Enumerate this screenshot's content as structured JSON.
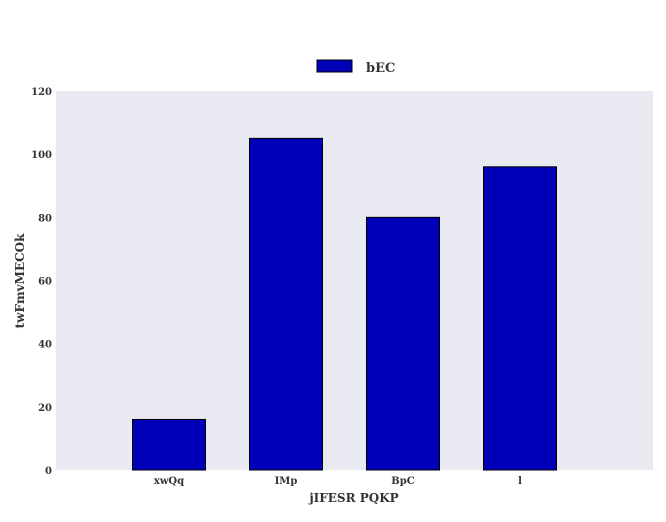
{
  "chart_data": {
    "type": "bar",
    "categories": [
      "xwQq",
      "IMp",
      "BpC",
      "l"
    ],
    "series": [
      {
        "name": "bEC",
        "values": [
          16,
          105,
          80,
          96
        ],
        "color": "#0000b8"
      }
    ],
    "xlabel": "jIFESR PQKP",
    "ylabel": "twFmvMECOk",
    "ylim": [
      0,
      120
    ],
    "yticks": [
      0,
      20,
      40,
      60,
      80,
      100,
      120
    ],
    "grid": false,
    "legend_position": "top-center",
    "plot_background": "#e9e9f1",
    "bar_edge_color": "#000000"
  }
}
